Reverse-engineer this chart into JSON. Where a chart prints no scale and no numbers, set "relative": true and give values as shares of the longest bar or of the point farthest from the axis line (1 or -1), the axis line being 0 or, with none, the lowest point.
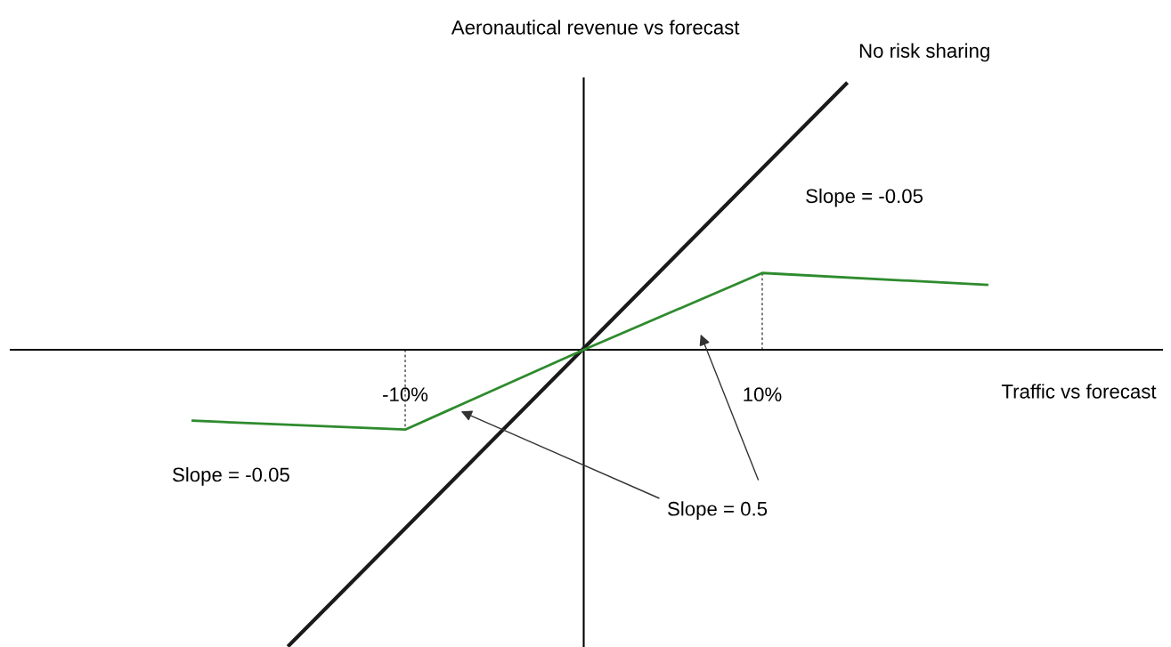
{
  "chart_data": {
    "type": "line",
    "relative": true,
    "ylabel": "Aeronautical revenue vs forecast",
    "xlabel": "Traffic vs forecast",
    "xlim": [
      -32.1,
      32.4
    ],
    "xticks": [
      {
        "value": -10,
        "label": "-10%"
      },
      {
        "value": 10,
        "label": "10%"
      }
    ],
    "series": [
      {
        "name": "No risk sharing",
        "color": "#1a1a1a",
        "x": [
          -16.5,
          14.7
        ],
        "values": [
          -1,
          0.9
        ]
      },
      {
        "color": "#2e8b2e",
        "x": [
          -21.9,
          -10,
          0,
          10,
          22.6
        ],
        "values": [
          -0.24,
          -0.27,
          0,
          0.26,
          0.22
        ]
      },
      {
        "type": "line",
        "color": "#444444",
        "line_style": "dotted",
        "x": [
          -10,
          -10
        ],
        "values": [
          0,
          -0.27
        ]
      },
      {
        "type": "line",
        "color": "#444444",
        "line_style": "dotted",
        "x": [
          10,
          10
        ],
        "values": [
          0,
          0.26
        ]
      }
    ],
    "annotations": [
      "Slope = -0.05",
      "Slope = -0.05",
      "Slope = 0.5"
    ],
    "marker": "none",
    "line_style": "solid",
    "grid": false,
    "legend": false
  }
}
